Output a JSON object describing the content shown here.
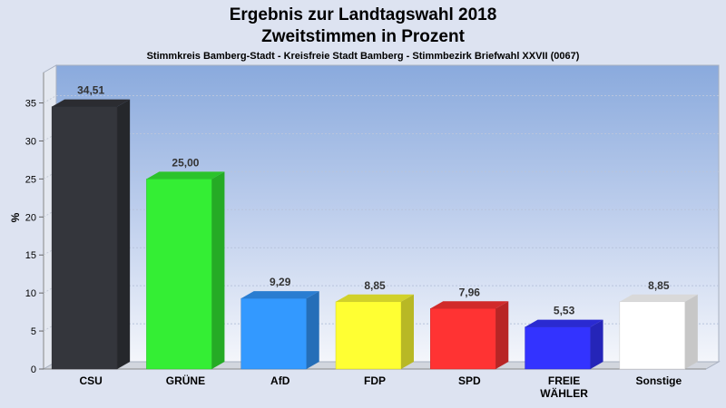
{
  "chart_data": {
    "type": "bar",
    "title": "Ergebnis zur Landtagswahl 2018",
    "title_line2": "Zweitstimmen in Prozent",
    "subtitle": "Stimmkreis Bamberg-Stadt - Kreisfreie Stadt Bamberg - Stimmbezirk Briefwahl XXVII (0067)",
    "ylabel": "%",
    "xlabel": "",
    "ylim": [
      0,
      39
    ],
    "yticks": [
      0,
      5,
      10,
      15,
      20,
      25,
      30,
      35
    ],
    "grid": true,
    "categories": [
      {
        "lines": [
          "CSU"
        ]
      },
      {
        "lines": [
          "GRÜNE"
        ]
      },
      {
        "lines": [
          "AfD"
        ]
      },
      {
        "lines": [
          "FDP"
        ]
      },
      {
        "lines": [
          "SPD"
        ]
      },
      {
        "lines": [
          "FREIE",
          "WÄHLER"
        ]
      },
      {
        "lines": [
          "Sonstige"
        ]
      }
    ],
    "values": [
      34.51,
      25.0,
      9.29,
      8.85,
      7.96,
      5.53,
      8.85
    ],
    "value_labels": [
      "34,51",
      "25,00",
      "9,29",
      "8,85",
      "7,96",
      "5,53",
      "8,85"
    ],
    "colors": [
      "#34363c",
      "#34ee34",
      "#3399ff",
      "#ffff33",
      "#ff3333",
      "#3333ff",
      "#ffffff"
    ]
  }
}
